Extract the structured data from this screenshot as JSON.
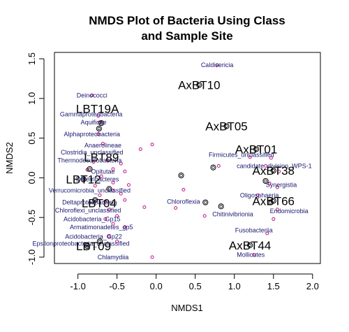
{
  "chart_data": {
    "type": "scatter",
    "title": [
      "NMDS Plot of Bacteria Using Class",
      "and Sample Site"
    ],
    "xlabel": "NMDS1",
    "ylabel": "NMDS2",
    "xlim": [
      -1.3,
      2.1
    ],
    "ylim": [
      -1.08,
      1.58
    ],
    "xticks": [
      "-1.0",
      "-0.5",
      "0.0",
      "0.5",
      "1.0",
      "1.5",
      "2.0"
    ],
    "yticks": [
      "-1.0",
      "-0.5",
      "0.0",
      "0.5",
      "1.0",
      "1.5"
    ],
    "colors": {
      "species_text": "#191970",
      "species_point": "#c0178b",
      "site_text": "#000000"
    },
    "species_labels": [
      {
        "text": "Caldisericia",
        "x": 0.78,
        "y": 1.42
      },
      {
        "text": "Deinococci",
        "x": -0.82,
        "y": 1.04
      },
      {
        "text": "Gammaproteobacteria",
        "x": -0.83,
        "y": 0.8
      },
      {
        "text": "Aquificae",
        "x": -0.8,
        "y": 0.7
      },
      {
        "text": "Alphaproteobacteria",
        "x": -0.82,
        "y": 0.55
      },
      {
        "text": "Anaerolineae",
        "x": -0.68,
        "y": 0.41
      },
      {
        "text": "Clostridia_unclassified",
        "x": -0.82,
        "y": 0.32
      },
      {
        "text": "Thermodesulfobacteria",
        "x": -0.85,
        "y": 0.22
      },
      {
        "text": "Opitutae",
        "x": -0.68,
        "y": 0.08
      },
      {
        "text": "Deferribacteres",
        "x": -0.75,
        "y": -0.02
      },
      {
        "text": "Verrucomicrobia_unclassified",
        "x": -0.85,
        "y": -0.16
      },
      {
        "text": "Deltaproteobacteria",
        "x": -0.85,
        "y": -0.31
      },
      {
        "text": "Chloroflexi_unclassified",
        "x": -0.87,
        "y": -0.41
      },
      {
        "text": "Acidobacteria_Gp15",
        "x": -0.82,
        "y": -0.52
      },
      {
        "text": "Armatimonadetes_gp5",
        "x": -0.7,
        "y": -0.62
      },
      {
        "text": "Acidobacteria_Gp22",
        "x": -0.8,
        "y": -0.74
      },
      {
        "text": "Epsilonproteobacteria_unclassified",
        "x": -0.96,
        "y": -0.83
      },
      {
        "text": "Chlamydiia",
        "x": -0.55,
        "y": -1.0
      },
      {
        "text": "Chloroflexia",
        "x": 0.35,
        "y": -0.3
      },
      {
        "text": "Chitinivibrionia",
        "x": 0.98,
        "y": -0.46
      },
      {
        "text": "Firmicutes_unclassified",
        "x": 1.09,
        "y": 0.29
      },
      {
        "text": "candidate_division_WPS-1",
        "x": 1.51,
        "y": 0.15
      },
      {
        "text": "Synergistia",
        "x": 1.6,
        "y": -0.09
      },
      {
        "text": "Oligosphaeria",
        "x": 1.32,
        "y": -0.22
      },
      {
        "text": "Endomicrobia",
        "x": 1.7,
        "y": -0.42
      },
      {
        "text": "Fusobacteriia",
        "x": 1.25,
        "y": -0.66
      },
      {
        "text": "Mollicutes",
        "x": 1.21,
        "y": -0.97
      }
    ],
    "sites": [
      {
        "text": "AxBT10",
        "x": 0.55,
        "y": 1.17
      },
      {
        "text": "LBT19A",
        "x": -0.75,
        "y": 0.87
      },
      {
        "text": "AxBT05",
        "x": 0.9,
        "y": 0.65
      },
      {
        "text": "AxBT01",
        "x": 1.28,
        "y": 0.36
      },
      {
        "text": "LBT89",
        "x": -0.7,
        "y": 0.26
      },
      {
        "text": "AxBT38",
        "x": 1.5,
        "y": 0.09
      },
      {
        "text": "LBT12",
        "x": -0.93,
        "y": -0.02
      },
      {
        "text": "LBT04",
        "x": -0.73,
        "y": -0.32
      },
      {
        "text": "AxBT66",
        "x": 1.5,
        "y": -0.29
      },
      {
        "text": "LBT09",
        "x": -0.8,
        "y": -0.86
      },
      {
        "text": "AxBT44",
        "x": 1.2,
        "y": -0.85
      }
    ],
    "species_points": [
      [
        0.78,
        1.42
      ],
      [
        -0.82,
        1.04
      ],
      [
        -0.74,
        0.78
      ],
      [
        -0.72,
        0.7
      ],
      [
        -0.74,
        0.55
      ],
      [
        -0.68,
        0.43
      ],
      [
        -0.2,
        0.36
      ],
      [
        -0.05,
        0.42
      ],
      [
        -0.62,
        0.22
      ],
      [
        -0.8,
        0.2
      ],
      [
        -0.55,
        0.11
      ],
      [
        -0.45,
        0.18
      ],
      [
        -0.4,
        0.08
      ],
      [
        -0.7,
        0.02
      ],
      [
        -0.55,
        -0.06
      ],
      [
        -0.35,
        -0.09
      ],
      [
        -0.55,
        -0.16
      ],
      [
        -0.45,
        -0.2
      ],
      [
        -0.4,
        -0.28
      ],
      [
        -0.15,
        -0.37
      ],
      [
        -0.65,
        -0.3
      ],
      [
        -0.6,
        -0.4
      ],
      [
        -0.5,
        -0.48
      ],
      [
        -0.65,
        -0.52
      ],
      [
        -0.55,
        -0.58
      ],
      [
        -0.4,
        -0.62
      ],
      [
        -0.6,
        -0.74
      ],
      [
        -0.5,
        -0.8
      ],
      [
        -0.05,
        -1.0
      ],
      [
        0.25,
        -0.38
      ],
      [
        0.35,
        -0.15
      ],
      [
        0.62,
        -0.48
      ],
      [
        0.8,
        0.15
      ],
      [
        1.2,
        0.26
      ],
      [
        1.47,
        0.25
      ],
      [
        1.4,
        0.15
      ],
      [
        1.57,
        0.08
      ],
      [
        1.45,
        -0.07
      ],
      [
        1.55,
        -0.12
      ],
      [
        1.3,
        -0.22
      ],
      [
        1.55,
        -0.4
      ],
      [
        1.5,
        -0.52
      ],
      [
        1.42,
        -0.7
      ],
      [
        1.25,
        -0.97
      ],
      [
        -0.88,
        0.1
      ],
      [
        -0.78,
        -0.1
      ],
      [
        -0.72,
        -0.22
      ]
    ],
    "site_points": [
      [
        0.55,
        1.17
      ],
      [
        -0.7,
        0.69
      ],
      [
        0.9,
        0.65
      ],
      [
        0.73,
        0.13
      ],
      [
        1.28,
        0.36
      ],
      [
        -0.73,
        0.62
      ],
      [
        -0.85,
        0.11
      ],
      [
        0.32,
        0.03
      ],
      [
        1.5,
        0.09
      ],
      [
        1.4,
        -0.04
      ],
      [
        -0.93,
        -0.02
      ],
      [
        -0.6,
        -0.14
      ],
      [
        -0.78,
        -0.28
      ],
      [
        0.63,
        -0.31
      ],
      [
        0.83,
        -0.36
      ],
      [
        1.5,
        -0.29
      ],
      [
        1.46,
        -0.31
      ],
      [
        -0.88,
        -0.86
      ],
      [
        -0.72,
        -0.8
      ],
      [
        1.2,
        -0.85
      ]
    ]
  }
}
